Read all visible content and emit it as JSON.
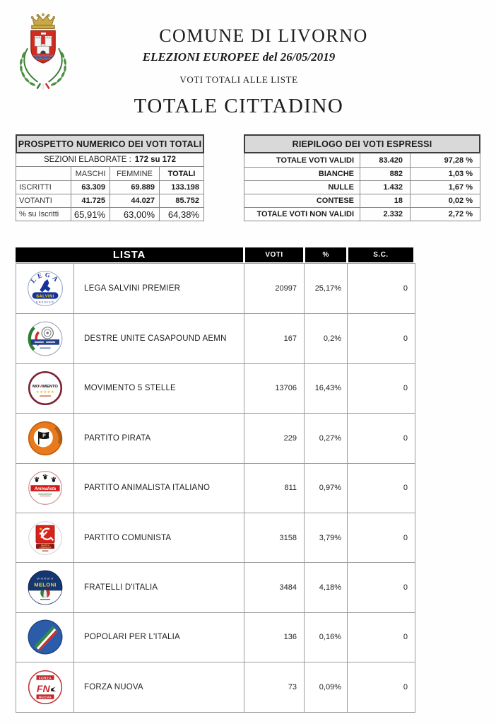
{
  "header": {
    "municipality": "COMUNE DI LIVORNO",
    "election": "ELEZIONI EUROPEE del 26/05/2019",
    "subtitle": "VOTI TOTALI ALLE LISTE",
    "title": "TOTALE CITTADINO",
    "crest_icon": "livorno-coat-of-arms"
  },
  "prospetto": {
    "title": "PROSPETTO NUMERICO DEI VOTI TOTALI",
    "sezioni_label": "SEZIONI ELABORATE :",
    "sezioni_value": "172 su 172",
    "columns": [
      "MASCHI",
      "FEMMINE",
      "TOTALI"
    ],
    "rows": [
      {
        "label": "ISCRITTI",
        "maschi": "63.309",
        "femmine": "69.889",
        "totali": "133.198"
      },
      {
        "label": "VOTANTI",
        "maschi": "41.725",
        "femmine": "44.027",
        "totali": "85.752"
      },
      {
        "label": "% su Iscritti",
        "maschi": "65,91%",
        "femmine": "63,00%",
        "totali": "64,38%"
      }
    ]
  },
  "riepilogo": {
    "title": "RIEPILOGO DEI VOTI ESPRESSI",
    "rows": [
      {
        "label": "TOTALE VOTI VALIDI",
        "value": "83.420",
        "percent": "97,28 %"
      },
      {
        "label": "BIANCHE",
        "value": "882",
        "percent": "1,03 %"
      },
      {
        "label": "NULLE",
        "value": "1.432",
        "percent": "1,67 %"
      },
      {
        "label": "CONTESE",
        "value": "18",
        "percent": "0,02 %"
      },
      {
        "label": "TOTALE VOTI NON VALIDI",
        "value": "2.332",
        "percent": "2,72 %"
      }
    ]
  },
  "results_table": {
    "headers": {
      "lista": "LISTA",
      "voti": "VOTI",
      "percent": "%",
      "sc": "S.C."
    },
    "rows": [
      {
        "logo": "lega-salvini-logo",
        "name": "LEGA SALVINI PREMIER",
        "voti": "20997",
        "percent": "25,17%",
        "sc": "0"
      },
      {
        "logo": "destre-unite-casapound-logo",
        "name": "DESTRE UNITE CASAPOUND AEMN",
        "voti": "167",
        "percent": "0,2%",
        "sc": "0"
      },
      {
        "logo": "movimento-5-stelle-logo",
        "name": "MOVIMENTO 5 STELLE",
        "voti": "13706",
        "percent": "16,43%",
        "sc": "0"
      },
      {
        "logo": "partito-pirata-logo",
        "name": "PARTITO PIRATA",
        "voti": "229",
        "percent": "0,27%",
        "sc": "0"
      },
      {
        "logo": "partito-animalista-logo",
        "name": "PARTITO ANIMALISTA ITALIANO",
        "voti": "811",
        "percent": "0,97%",
        "sc": "0"
      },
      {
        "logo": "partito-comunista-logo",
        "name": "PARTITO COMUNISTA",
        "voti": "3158",
        "percent": "3,79%",
        "sc": "0"
      },
      {
        "logo": "fratelli-ditalia-logo",
        "name": "FRATELLI D'ITALIA",
        "voti": "3484",
        "percent": "4,18%",
        "sc": "0"
      },
      {
        "logo": "popolari-per-litalia-logo",
        "name": "POPOLARI PER L'ITALIA",
        "voti": "136",
        "percent": "0,16%",
        "sc": "0"
      },
      {
        "logo": "forza-nuova-logo",
        "name": "FORZA NUOVA",
        "voti": "73",
        "percent": "0,09%",
        "sc": "0"
      }
    ]
  },
  "logos": {
    "lega-salvini-logo": {
      "top": "LEGA",
      "banner": "SALVINI",
      "bottom": "PREMIER"
    },
    "destre-unite-casapound-logo": {
      "banner": ""
    },
    "movimento-5-stelle-logo": {
      "top": "MOVIMENTO",
      "stars": "★★★★★"
    },
    "partito-pirata-logo": {
      "letter": "P"
    },
    "partito-animalista-logo": {
      "banner": "Animalista"
    },
    "partito-comunista-logo": {
      "banner": "PARTITO COMUNISTA"
    },
    "fratelli-ditalia-logo": {
      "top": "GIORGIA",
      "middle": "MELONI"
    },
    "popolari-per-litalia-logo": {},
    "forza-nuova-logo": {
      "top": "FORZA",
      "middle": "FN",
      "bottom": "NUOVA"
    }
  }
}
